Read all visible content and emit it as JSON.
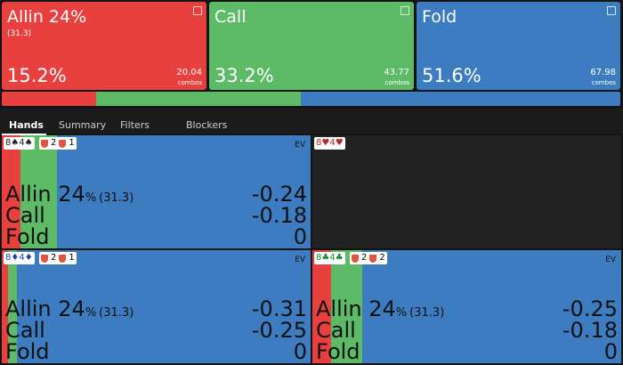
{
  "actions": [
    {
      "name": "Allin 24%",
      "sub": "(31.3)",
      "pct": 15.2,
      "pct_label": "15.2%",
      "combos": "20.04",
      "combos_label": "combos",
      "color": "#e8403f"
    },
    {
      "name": "Call",
      "pct": 33.2,
      "pct_label": "33.2%",
      "combos": "43.77",
      "combos_label": "combos",
      "color": "#5dba67"
    },
    {
      "name": "Fold",
      "pct": 51.6,
      "pct_label": "51.6%",
      "combos": "67.98",
      "combos_label": "combos",
      "color": "#3d7cc0"
    }
  ],
  "tabs": [
    "Hands",
    "Summary",
    "Filters",
    "Blockers"
  ],
  "hands": [
    {
      "cards": "8♠4♠",
      "card_color": "#222222",
      "blockers": [
        "2",
        "1"
      ],
      "ev_label": "EV",
      "freqs": [
        6,
        12,
        82
      ],
      "rows": [
        {
          "name": "Allin 24",
          "unit": "%",
          "size": "(31.3)",
          "ev": "-0.24"
        },
        {
          "name": "Call",
          "ev": "-0.18"
        },
        {
          "name": "Fold",
          "ev": "0"
        }
      ]
    },
    {
      "cards": "8♥4♥",
      "card_color": "#b02a2a"
    },
    {
      "cards": "8♦4♦",
      "card_color": "#1a47b8",
      "blockers": [
        "2",
        "1"
      ],
      "ev_label": "EV",
      "freqs": [
        2,
        3,
        95
      ],
      "rows": [
        {
          "name": "Allin 24",
          "unit": "%",
          "size": "(31.3)",
          "ev": "-0.31"
        },
        {
          "name": "Call",
          "ev": "-0.25"
        },
        {
          "name": "Fold",
          "ev": "0"
        }
      ]
    },
    {
      "cards": "8♣4♣",
      "card_color": "#1e8a2e",
      "blockers": [
        "2",
        "2"
      ],
      "ev_label": "EV",
      "freqs": [
        6,
        10,
        84
      ],
      "rows": [
        {
          "name": "Allin 24",
          "unit": "%",
          "size": "(31.3)",
          "ev": "-0.25"
        },
        {
          "name": "Call",
          "ev": "-0.18"
        },
        {
          "name": "Fold",
          "ev": "0"
        }
      ]
    }
  ]
}
